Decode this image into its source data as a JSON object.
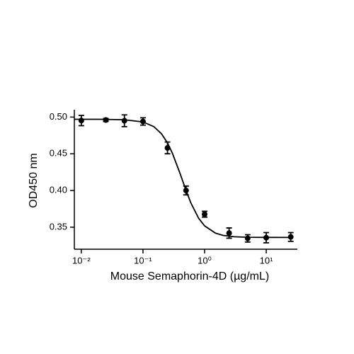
{
  "chart_data": {
    "type": "scatter",
    "xlabel": "Mouse Semaphorin-4D (µg/mL)",
    "ylabel": "OD450 nm",
    "xscale": "log",
    "x": [
      0.01,
      0.025,
      0.05,
      0.1,
      0.25,
      0.5,
      1,
      2.5,
      5,
      10,
      25
    ],
    "series": [
      {
        "color": "#000000",
        "values": [
          0.4953,
          0.496,
          0.495,
          0.494,
          0.458,
          0.4,
          0.3677,
          0.342,
          0.3348,
          0.3357,
          0.3367
        ],
        "errors": [
          0.007,
          0.002,
          0.008,
          0.005,
          0.008,
          0.006,
          0.004,
          0.007,
          0.005,
          0.007,
          0.006
        ]
      }
    ],
    "curve": {
      "color": "#000000",
      "x": [
        0.0077,
        0.01,
        0.02,
        0.05,
        0.1,
        0.15,
        0.2,
        0.25,
        0.3,
        0.4,
        0.5,
        0.6,
        0.8,
        1,
        1.5,
        2,
        3,
        5,
        10,
        25
      ],
      "y": [
        0.497,
        0.497,
        0.497,
        0.4964,
        0.4934,
        0.487,
        0.4772,
        0.4648,
        0.4508,
        0.4231,
        0.4,
        0.3829,
        0.3622,
        0.3518,
        0.3419,
        0.3388,
        0.337,
        0.3363,
        0.3361,
        0.336
      ]
    },
    "xlim": [
      0.0077,
      32
    ],
    "ylim": [
      0.32,
      0.51
    ],
    "xticks": [
      {
        "value": 0.01,
        "label": "10⁻²"
      },
      {
        "value": 0.1,
        "label": "10⁻¹"
      },
      {
        "value": 1,
        "label": "10⁰"
      },
      {
        "value": 10,
        "label": "10¹"
      }
    ],
    "yticks": [
      {
        "value": 0.35,
        "label": "0.35"
      },
      {
        "value": 0.4,
        "label": "0.40"
      },
      {
        "value": 0.45,
        "label": "0.45"
      },
      {
        "value": 0.5,
        "label": "0.50"
      }
    ],
    "grid": false
  }
}
